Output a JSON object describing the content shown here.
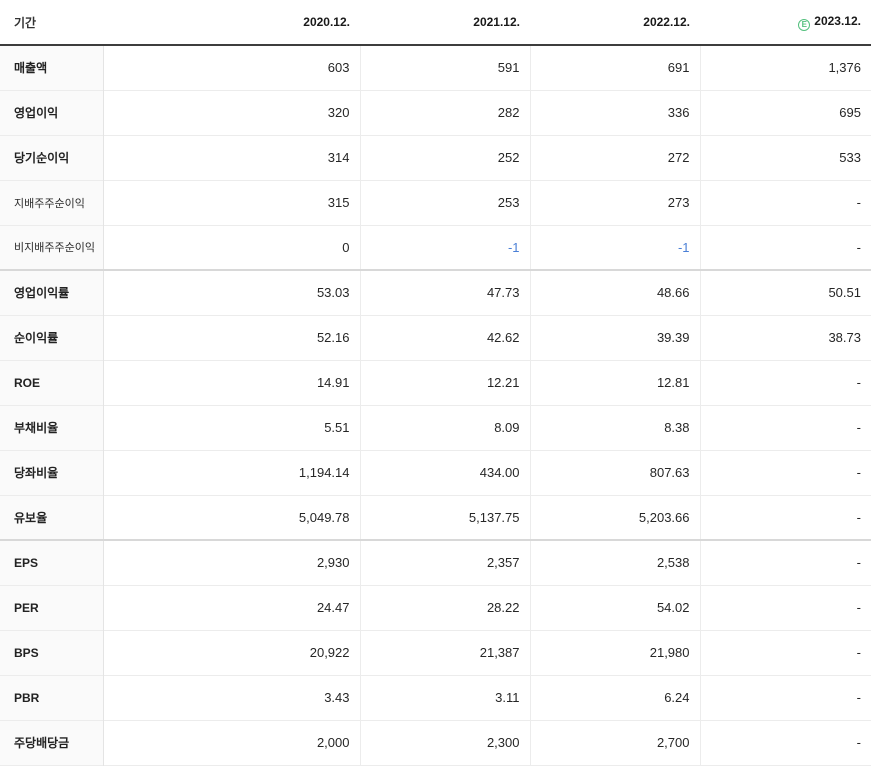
{
  "header": {
    "period_label": "기간",
    "columns": [
      "2020.12.",
      "2021.12.",
      "2022.12.",
      "2023.12."
    ],
    "estimate_badge": "E",
    "estimate_column_index": 3
  },
  "colors": {
    "estimate_green": "#54c07e",
    "negative_blue": "#4a7fd6",
    "label_column_bg": "#fafafa",
    "header_rule": "#3d3d3d"
  },
  "rows": [
    {
      "label": "매출액",
      "sub": false,
      "group_end": false,
      "values": [
        "603",
        "591",
        "691",
        "1,376"
      ]
    },
    {
      "label": "영업이익",
      "sub": false,
      "group_end": false,
      "values": [
        "320",
        "282",
        "336",
        "695"
      ]
    },
    {
      "label": "당기순이익",
      "sub": false,
      "group_end": false,
      "values": [
        "314",
        "252",
        "272",
        "533"
      ]
    },
    {
      "label": "지배주주순이익",
      "sub": true,
      "group_end": false,
      "values": [
        "315",
        "253",
        "273",
        "-"
      ]
    },
    {
      "label": "비지배주주순이익",
      "sub": true,
      "group_end": true,
      "values": [
        "0",
        "-1",
        "-1",
        "-"
      ]
    },
    {
      "label": "영업이익률",
      "sub": false,
      "group_end": false,
      "values": [
        "53.03",
        "47.73",
        "48.66",
        "50.51"
      ]
    },
    {
      "label": "순이익률",
      "sub": false,
      "group_end": false,
      "values": [
        "52.16",
        "42.62",
        "39.39",
        "38.73"
      ]
    },
    {
      "label": "ROE",
      "sub": false,
      "group_end": false,
      "values": [
        "14.91",
        "12.21",
        "12.81",
        "-"
      ]
    },
    {
      "label": "부채비율",
      "sub": false,
      "group_end": false,
      "values": [
        "5.51",
        "8.09",
        "8.38",
        "-"
      ]
    },
    {
      "label": "당좌비율",
      "sub": false,
      "group_end": false,
      "values": [
        "1,194.14",
        "434.00",
        "807.63",
        "-"
      ]
    },
    {
      "label": "유보율",
      "sub": false,
      "group_end": true,
      "values": [
        "5,049.78",
        "5,137.75",
        "5,203.66",
        "-"
      ]
    },
    {
      "label": "EPS",
      "sub": false,
      "group_end": false,
      "values": [
        "2,930",
        "2,357",
        "2,538",
        "-"
      ]
    },
    {
      "label": "PER",
      "sub": false,
      "group_end": false,
      "values": [
        "24.47",
        "28.22",
        "54.02",
        "-"
      ]
    },
    {
      "label": "BPS",
      "sub": false,
      "group_end": false,
      "values": [
        "20,922",
        "21,387",
        "21,980",
        "-"
      ]
    },
    {
      "label": "PBR",
      "sub": false,
      "group_end": false,
      "values": [
        "3.43",
        "3.11",
        "6.24",
        "-"
      ]
    },
    {
      "label": "주당배당금",
      "sub": false,
      "group_end": false,
      "values": [
        "2,000",
        "2,300",
        "2,700",
        "-"
      ]
    }
  ]
}
